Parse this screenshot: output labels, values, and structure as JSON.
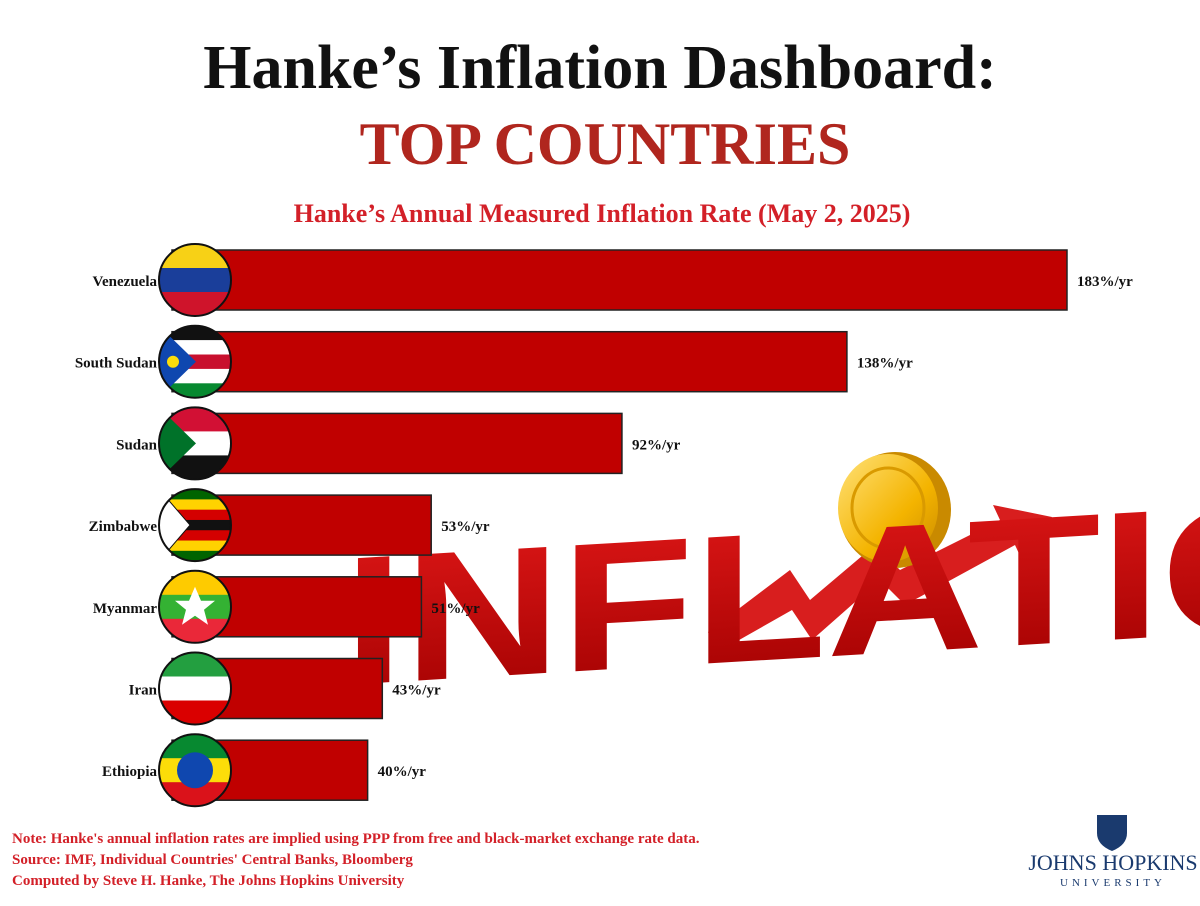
{
  "chart_data": {
    "type": "bar",
    "orientation": "horizontal",
    "title": "Hanke’s Inflation Dashboard:",
    "subtitle": "TOP COUNTRIES",
    "chart_title": "Hanke’s Annual Measured Inflation Rate (May 2, 2025)",
    "categories": [
      "Venezuela",
      "South Sudan",
      "Sudan",
      "Zimbabwe",
      "Myanmar",
      "Iran",
      "Ethiopia"
    ],
    "values": [
      183,
      138,
      92,
      53,
      51,
      43,
      40
    ],
    "value_labels": [
      "183%/yr",
      "138%/yr",
      "92%/yr",
      "53%/yr",
      "51%/yr",
      "43%/yr",
      "40%/yr"
    ],
    "color": "#c00000",
    "annotation": "INFLATION",
    "notes": [
      "Note: Hanke's annual inflation rates are implied using PPP from free and black-market exchange rate data.",
      "Source: IMF, Individual Countries' Central Banks, Bloomberg",
      "Computed by Steve H. Hanke, The Johns Hopkins University"
    ],
    "logo": {
      "name": "JOHNS HOPKINS",
      "subtitle": "UNIVERSITY"
    }
  }
}
